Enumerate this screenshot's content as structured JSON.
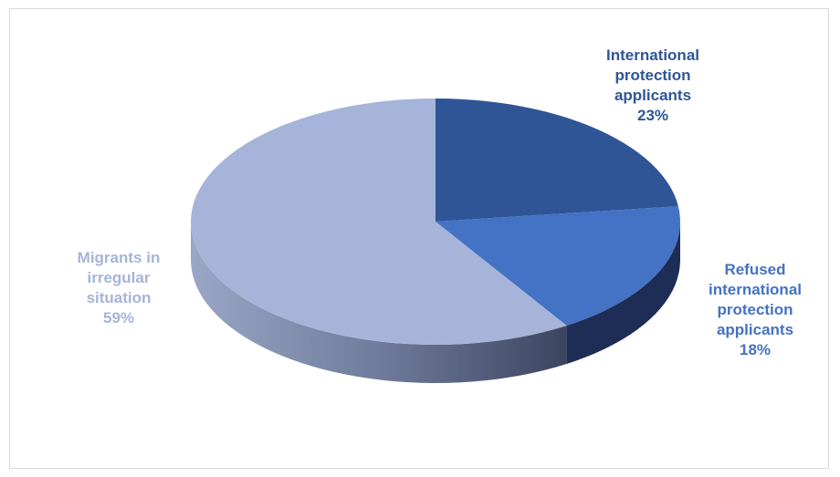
{
  "chart_data": {
    "type": "pie",
    "style": "3d",
    "title": "",
    "slices": [
      {
        "label_lines": [
          "International",
          "protection",
          "applicants"
        ],
        "value": 23,
        "value_text": "23%",
        "color": "#2F5597",
        "side": "#1E3766",
        "label_color": "#2F5597"
      },
      {
        "label_lines": [
          "Refused",
          "international",
          "protection",
          "applicants"
        ],
        "value": 18,
        "value_text": "18%",
        "color": "#4472C4",
        "side": "#1E2D55",
        "label_color": "#4472C4"
      },
      {
        "label_lines": [
          "Migrants in",
          "irregular",
          "situation"
        ],
        "value": 59,
        "value_text": "59%",
        "color": "#A5B4D8",
        "side": "#6E7E9E",
        "label_color": "#A5B4D8"
      }
    ]
  }
}
